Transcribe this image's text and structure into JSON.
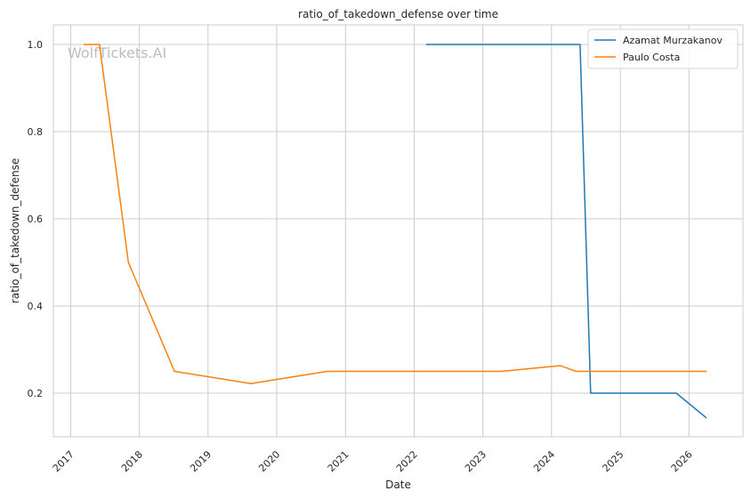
{
  "chart_data": {
    "type": "line",
    "title": "ratio_of_takedown_defense over time",
    "xlabel": "Date",
    "ylabel": "ratio_of_takedown_defense",
    "x_ticks": [
      "2017",
      "2018",
      "2019",
      "2020",
      "2021",
      "2022",
      "2023",
      "2024",
      "2025",
      "2026"
    ],
    "y_ticks": [
      "0.2",
      "0.4",
      "0.6",
      "0.8",
      "1.0"
    ],
    "xlim": [
      "2016-10-01",
      "2026-10-15"
    ],
    "ylim": [
      0.1,
      1.045
    ],
    "grid": true,
    "legend_position": "top-right",
    "watermark": "WolfTickets.AI",
    "series": [
      {
        "name": "Azamat Murzakanov",
        "color": "#1f77b4",
        "points": [
          [
            "2022-03-05",
            1.0
          ],
          [
            "2024-06-01",
            1.0
          ],
          [
            "2024-07-27",
            0.2
          ],
          [
            "2025-10-25",
            0.2
          ],
          [
            "2026-04-04",
            0.143
          ]
        ]
      },
      {
        "name": "Paulo Costa",
        "color": "#ff7f0e",
        "points": [
          [
            "2017-03-11",
            1.0
          ],
          [
            "2017-06-03",
            1.0
          ],
          [
            "2017-11-04",
            0.5
          ],
          [
            "2018-07-07",
            0.25
          ],
          [
            "2019-08-17",
            0.222
          ],
          [
            "2020-09-26",
            0.25
          ],
          [
            "2023-04-08",
            0.25
          ],
          [
            "2024-02-17",
            0.263
          ],
          [
            "2024-05-11",
            0.25
          ],
          [
            "2026-04-04",
            0.25
          ]
        ]
      }
    ]
  }
}
